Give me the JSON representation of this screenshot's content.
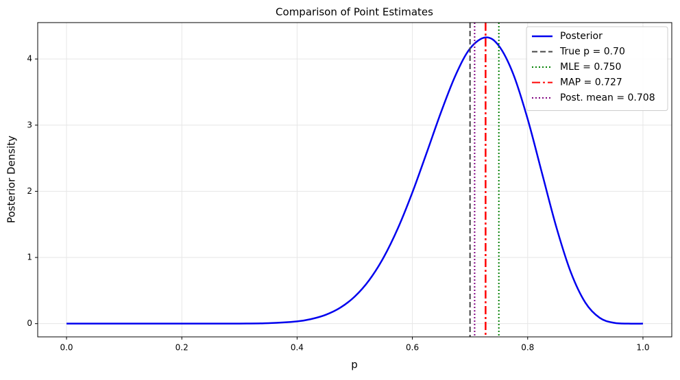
{
  "chart_data": {
    "type": "line",
    "title": "Comparison of Point Estimates",
    "x_label": "p",
    "y_label": "Posterior Density",
    "x": [
      0,
      0.1,
      0.2,
      0.25,
      0.3,
      0.35,
      0.4,
      0.425,
      0.45,
      0.475,
      0.5,
      0.525,
      0.55,
      0.575,
      0.6,
      0.625,
      0.65,
      0.675,
      0.7,
      0.727,
      0.75,
      0.775,
      0.8,
      0.825,
      0.85,
      0.875,
      0.9,
      0.925,
      0.95,
      0.975,
      1
    ],
    "series": [
      {
        "name": "Posterior",
        "color": "#0000ee",
        "values": [
          0,
          0,
          0,
          0.0001,
          0.0009,
          0.0066,
          0.0344,
          0.0703,
          0.1343,
          0.2413,
          0.4092,
          0.6565,
          0.999,
          1.444,
          1.983,
          2.587,
          3.203,
          3.756,
          4.158,
          4.326,
          4.199,
          3.772,
          3.092,
          2.27,
          1.4515,
          0.773,
          0.318,
          0.0877,
          0.0118,
          0.0003,
          0
        ]
      }
    ],
    "vlines": [
      {
        "name": "True p = 0.70",
        "value": 0.7,
        "color": "#444444",
        "dash": "8 4"
      },
      {
        "name": "MLE = 0.750",
        "value": 0.75,
        "color": "#008000",
        "dash": "2 3"
      },
      {
        "name": "MAP = 0.727",
        "value": 0.727,
        "color": "#ff0000",
        "dash": "12 4 3 4"
      },
      {
        "name": "Post. mean = 0.708",
        "value": 0.708,
        "color": "#800080",
        "dash": "2 3"
      }
    ],
    "xlim": [
      -0.05,
      1.05
    ],
    "ylim": [
      -0.2,
      4.55
    ],
    "xticks": [
      {
        "value": 0,
        "label": "0.0"
      },
      {
        "value": 0.2,
        "label": "0.2"
      },
      {
        "value": 0.4,
        "label": "0.4"
      },
      {
        "value": 0.6,
        "label": "0.6"
      },
      {
        "value": 0.8,
        "label": "0.8"
      },
      {
        "value": 1,
        "label": "1.0"
      }
    ],
    "yticks": [
      0,
      1,
      2,
      3,
      4
    ],
    "grid": true,
    "legend": "upper right"
  }
}
